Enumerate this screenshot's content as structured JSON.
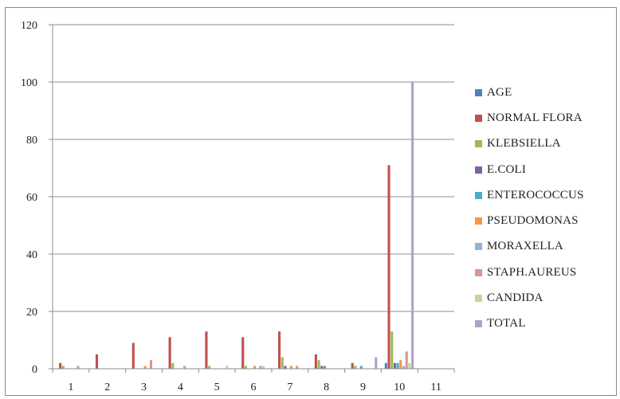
{
  "chart_data": {
    "type": "bar",
    "title": "",
    "xlabel": "",
    "ylabel": "",
    "ylim": [
      0,
      120
    ],
    "yticks": [
      "0",
      "20",
      "40",
      "60",
      "80",
      "100",
      "120"
    ],
    "grid": true,
    "legend_position": "right",
    "categories": [
      "1",
      "2",
      "3",
      "4",
      "5",
      "6",
      "7",
      "8",
      "9",
      "10",
      "11"
    ],
    "series": [
      {
        "name": "AGE",
        "color": "#4f81bd",
        "values": [
          0,
          0,
          0,
          0,
          0,
          0,
          0,
          0,
          0,
          2,
          0
        ]
      },
      {
        "name": "NORMAL FLORA",
        "color": "#c0504d",
        "values": [
          2,
          5,
          9,
          11,
          13,
          11,
          13,
          5,
          2,
          71,
          0
        ]
      },
      {
        "name": "KLEBSIELLA",
        "color": "#9bbb59",
        "values": [
          1,
          0,
          0,
          2,
          1,
          1,
          4,
          3,
          1,
          13,
          0
        ]
      },
      {
        "name": "E.COLI",
        "color": "#8064a2",
        "values": [
          0,
          0,
          0,
          0,
          0,
          0,
          1,
          1,
          0,
          2,
          0
        ]
      },
      {
        "name": "ENTEROCOCCUS",
        "color": "#4bacc6",
        "values": [
          0,
          0,
          0,
          0,
          0,
          0,
          0,
          1,
          1,
          2,
          0
        ]
      },
      {
        "name": "PSEUDOMONAS",
        "color": "#f79646",
        "values": [
          0,
          0,
          1,
          0,
          0,
          1,
          1,
          0,
          0,
          3,
          0
        ]
      },
      {
        "name": "MORAXELLA",
        "color": "#95b3d7",
        "values": [
          0,
          0,
          0,
          1,
          0,
          0,
          0,
          0,
          0,
          1,
          0
        ]
      },
      {
        "name": "STAPH.AUREUS",
        "color": "#d99694",
        "values": [
          1,
          0,
          3,
          0,
          0,
          1,
          1,
          0,
          0,
          6,
          0
        ]
      },
      {
        "name": "CANDIDA",
        "color": "#c3d69b",
        "values": [
          0,
          0,
          0,
          0,
          1,
          1,
          0,
          0,
          0,
          2,
          0
        ]
      },
      {
        "name": "TOTAL",
        "color": "#b2a1c7",
        "values": [
          0,
          0,
          0,
          0,
          0,
          0,
          0,
          0,
          4,
          100,
          0
        ]
      }
    ]
  }
}
